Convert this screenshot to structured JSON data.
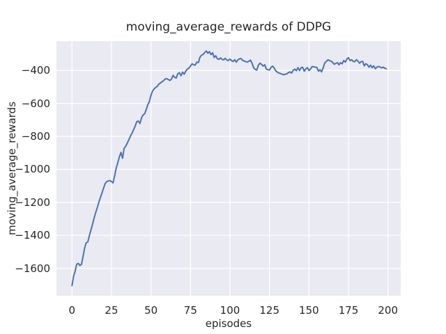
{
  "style": {
    "figure_bg": "#ffffff",
    "plot_bg": "#eaeaf2",
    "grid_color": "#ffffff",
    "line_color": "#4c72b0",
    "text_color": "#262626"
  },
  "chart_data": {
    "type": "line",
    "title": "moving_average_rewards of DDPG",
    "xlabel": "episodes",
    "ylabel": "moving_average_rewards",
    "legend_position": "none",
    "grid": true,
    "x_ticks": [
      0,
      25,
      50,
      75,
      100,
      125,
      150,
      175,
      200
    ],
    "y_ticks": [
      -400,
      -600,
      -800,
      -1000,
      -1200,
      -1400,
      -1600
    ],
    "xlim": [
      -9.84,
      208.07
    ],
    "ylim": [
      -1766,
      -222
    ],
    "series": [
      {
        "name": "moving_average_rewards",
        "color": "#4c72b0",
        "x_start": 0,
        "x_step": 1,
        "y": [
          -1705,
          -1648,
          -1618,
          -1575,
          -1570,
          -1583,
          -1576,
          -1528,
          -1478,
          -1445,
          -1440,
          -1402,
          -1368,
          -1332,
          -1296,
          -1262,
          -1232,
          -1200,
          -1170,
          -1142,
          -1114,
          -1086,
          -1074,
          -1070,
          -1068,
          -1074,
          -1082,
          -1040,
          -992,
          -960,
          -925,
          -897,
          -933,
          -872,
          -860,
          -840,
          -820,
          -798,
          -780,
          -760,
          -737,
          -710,
          -707,
          -722,
          -688,
          -670,
          -663,
          -637,
          -607,
          -588,
          -550,
          -525,
          -512,
          -503,
          -496,
          -483,
          -476,
          -469,
          -461,
          -452,
          -450,
          -455,
          -461,
          -452,
          -430,
          -442,
          -446,
          -420,
          -414,
          -432,
          -410,
          -423,
          -405,
          -392,
          -386,
          -374,
          -360,
          -366,
          -368,
          -350,
          -352,
          -320,
          -308,
          -303,
          -292,
          -282,
          -296,
          -286,
          -304,
          -293,
          -322,
          -311,
          -330,
          -333,
          -324,
          -333,
          -336,
          -327,
          -337,
          -340,
          -331,
          -341,
          -346,
          -335,
          -350,
          -336,
          -330,
          -328,
          -339,
          -343,
          -347,
          -350,
          -344,
          -338,
          -357,
          -384,
          -394,
          -398,
          -368,
          -356,
          -363,
          -374,
          -366,
          -391,
          -396,
          -398,
          -382,
          -374,
          -386,
          -402,
          -411,
          -416,
          -419,
          -423,
          -426,
          -423,
          -421,
          -413,
          -409,
          -416,
          -399,
          -392,
          -402,
          -383,
          -401,
          -384,
          -381,
          -405,
          -391,
          -383,
          -401,
          -391,
          -377,
          -378,
          -380,
          -382,
          -405,
          -396,
          -409,
          -384,
          -355,
          -345,
          -336,
          -341,
          -343,
          -352,
          -363,
          -357,
          -353,
          -366,
          -353,
          -360,
          -340,
          -350,
          -331,
          -323,
          -341,
          -335,
          -345,
          -347,
          -335,
          -343,
          -356,
          -347,
          -345,
          -372,
          -359,
          -366,
          -380,
          -368,
          -384,
          -372,
          -390,
          -380,
          -376,
          -379,
          -385,
          -380,
          -387,
          -390
        ]
      }
    ]
  }
}
